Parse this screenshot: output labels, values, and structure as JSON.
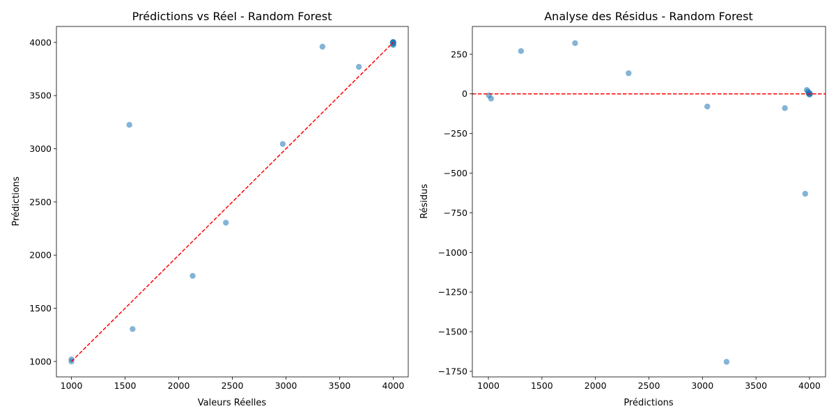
{
  "chart_data": [
    {
      "type": "scatter",
      "title": "Prédictions vs Réel - Random Forest",
      "xlabel": "Valeurs Réelles",
      "ylabel": "Prédictions",
      "xlim": [
        860,
        4140
      ],
      "ylim": [
        855,
        4150
      ],
      "xticks": [
        1000,
        1500,
        2000,
        2500,
        3000,
        3500,
        4000
      ],
      "yticks": [
        1000,
        1500,
        2000,
        2500,
        3000,
        3500,
        4000
      ],
      "xtick_labels": [
        "1000",
        "1500",
        "2000",
        "2500",
        "3000",
        "3500",
        "4000"
      ],
      "ytick_labels": [
        "1000",
        "1500",
        "2000",
        "2500",
        "3000",
        "3500",
        "4000"
      ],
      "point_color": "#1f77b4",
      "point_alpha": 0.55,
      "points": [
        {
          "x": 1000,
          "y": 1000
        },
        {
          "x": 1000,
          "y": 1020
        },
        {
          "x": 1540,
          "y": 3225
        },
        {
          "x": 1570,
          "y": 1305
        },
        {
          "x": 2130,
          "y": 1805
        },
        {
          "x": 2440,
          "y": 2305
        },
        {
          "x": 2970,
          "y": 3045
        },
        {
          "x": 3340,
          "y": 3960
        },
        {
          "x": 3680,
          "y": 3770
        },
        {
          "x": 4000,
          "y": 3975
        },
        {
          "x": 4000,
          "y": 3985
        },
        {
          "x": 4000,
          "y": 3990
        },
        {
          "x": 4000,
          "y": 3995
        },
        {
          "x": 4000,
          "y": 4000
        },
        {
          "x": 4000,
          "y": 4000
        },
        {
          "x": 4000,
          "y": 4000
        },
        {
          "x": 3995,
          "y": 4000
        },
        {
          "x": 4000,
          "y": 4005
        }
      ],
      "reference_line": {
        "x": [
          1000,
          4000
        ],
        "y": [
          1000,
          4000
        ],
        "color": "#ff0000",
        "style": "dashed"
      },
      "grid": false
    },
    {
      "type": "scatter",
      "title": "Analyse des Résidus - Random Forest",
      "xlabel": "Prédictions",
      "ylabel": "Résidus",
      "xlim": [
        850,
        4150
      ],
      "ylim": [
        -1785,
        425
      ],
      "xticks": [
        1000,
        1500,
        2000,
        2500,
        3000,
        3500,
        4000
      ],
      "yticks": [
        250,
        0,
        -250,
        -500,
        -750,
        -1000,
        -1250,
        -1500,
        -1750
      ],
      "xtick_labels": [
        "1000",
        "1500",
        "2000",
        "2500",
        "3000",
        "3500",
        "4000"
      ],
      "ytick_labels": [
        "250",
        "0",
        "−250",
        "−500",
        "−750",
        "−1000",
        "−1250",
        "−1500",
        "−1750"
      ],
      "point_color": "#1f77b4",
      "point_alpha": 0.55,
      "points": [
        {
          "x": 1005,
          "y": -10
        },
        {
          "x": 1025,
          "y": -30
        },
        {
          "x": 1305,
          "y": 270
        },
        {
          "x": 1810,
          "y": 320
        },
        {
          "x": 2310,
          "y": 130
        },
        {
          "x": 3045,
          "y": -80
        },
        {
          "x": 3225,
          "y": -1690
        },
        {
          "x": 3770,
          "y": -90
        },
        {
          "x": 3960,
          "y": -630
        },
        {
          "x": 3975,
          "y": 25
        },
        {
          "x": 3985,
          "y": 15
        },
        {
          "x": 3990,
          "y": 5
        },
        {
          "x": 3995,
          "y": 0
        },
        {
          "x": 4000,
          "y": 0
        },
        {
          "x": 4000,
          "y": 5
        },
        {
          "x": 4000,
          "y": -5
        },
        {
          "x": 4005,
          "y": 0
        }
      ],
      "reference_line": {
        "y": 0,
        "color": "#ff0000",
        "style": "dashed"
      },
      "grid": false
    }
  ]
}
